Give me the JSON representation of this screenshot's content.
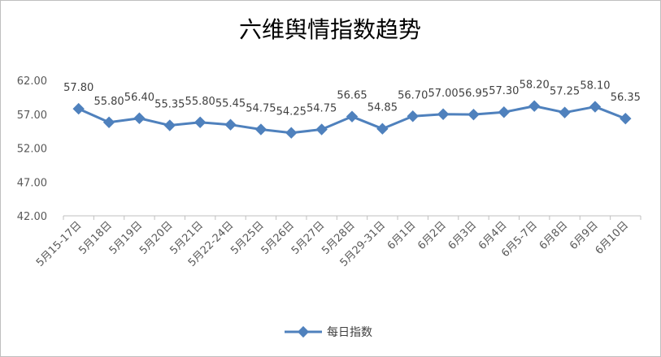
{
  "chart_data": {
    "type": "line",
    "title": "六维舆情指数趋势",
    "categories": [
      "5月15-17日",
      "5月18日",
      "5月19日",
      "5月20日",
      "5月21日",
      "5月22-24日",
      "5月25日",
      "5月26日",
      "5月27日",
      "5月28日",
      "5月29-31日",
      "6月1日",
      "6月2日",
      "6月3日",
      "6月4日",
      "6月5-7日",
      "6月8日",
      "6月9日",
      "6月10日"
    ],
    "series": [
      {
        "name": "每日指数",
        "values": [
          57.8,
          55.8,
          56.4,
          55.35,
          55.8,
          55.45,
          54.75,
          54.25,
          54.75,
          56.65,
          54.85,
          56.7,
          57.0,
          56.95,
          57.3,
          58.2,
          57.25,
          58.1,
          56.35
        ],
        "labels": [
          "57.80",
          "55.80",
          "56.40",
          "55.35",
          "55.80",
          "55.45",
          "54.75",
          "54.25",
          "54.75",
          "56.65",
          "54.85",
          "56.70",
          "57.00",
          "56.95",
          "57.30",
          "58.20",
          "57.25",
          "58.10",
          "56.35"
        ]
      }
    ],
    "yticks": [
      "42.00",
      "47.00",
      "52.00",
      "57.00",
      "62.00"
    ],
    "ylim": [
      42,
      62
    ],
    "grid": false,
    "legend": "bottom",
    "marker": "diamond",
    "line_color": "#4f81bd"
  }
}
